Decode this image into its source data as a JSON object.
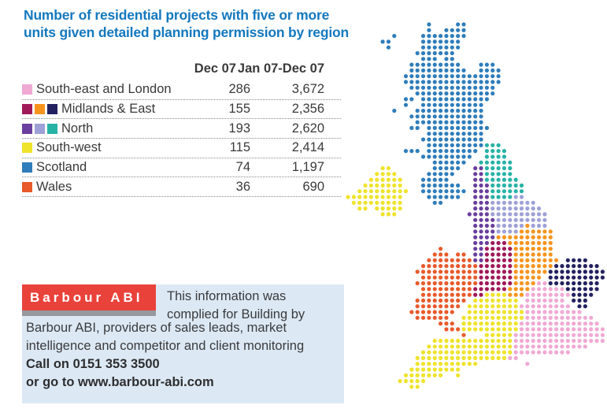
{
  "title": {
    "line1": "Number of residential projects with five or more",
    "line2": "units given detailed planning permission by region",
    "color": "#1478BE"
  },
  "table": {
    "headers": [
      "Dec 07",
      "Jan 07-Dec 07"
    ],
    "rows": [
      {
        "label": "South-east and London",
        "swatches": [
          "#F0A9D3"
        ],
        "dec07": "286",
        "jan_dec07": "3,672"
      },
      {
        "label": "Midlands & East",
        "swatches": [
          "#A01A59",
          "#F7941E",
          "#232160"
        ],
        "dec07": "155",
        "jan_dec07": "2,356"
      },
      {
        "label": "North",
        "swatches": [
          "#6A3F9D",
          "#9EA0D7",
          "#27B2A6"
        ],
        "dec07": "193",
        "jan_dec07": "2,620"
      },
      {
        "label": "South-west",
        "swatches": [
          "#EFE32B"
        ],
        "dec07": "115",
        "jan_dec07": "2,414"
      },
      {
        "label": "Scotland",
        "swatches": [
          "#2F7DBB"
        ],
        "dec07": "74",
        "jan_dec07": "1,197"
      },
      {
        "label": "Wales",
        "swatches": [
          "#E85A2B"
        ],
        "dec07": "36",
        "jan_dec07": "690"
      }
    ]
  },
  "infobox": {
    "logo_text": "Barbour ABI",
    "logo_bg": "#E9423B",
    "bar_color": "#97999E",
    "box_bg": "#DCE9F4",
    "intro_line1": "This information was",
    "intro_line2": "complied for Building by",
    "body_line1": "Barbour ABI, providers of sales leads, market",
    "body_line2": "intelligence and competitor and client monitoring",
    "phone_line": "Call on 0151 353 3500",
    "web_line": "or go to www.barbour-abi.com"
  },
  "chart_data": {
    "type": "table",
    "title": "Number of residential projects with five or more units given detailed planning permission by region",
    "categories": [
      "South-east and London",
      "Midlands & East",
      "North",
      "South-west",
      "Scotland",
      "Wales"
    ],
    "series": [
      {
        "name": "Dec 07",
        "values": [
          286,
          155,
          193,
          115,
          74,
          36
        ]
      },
      {
        "name": "Jan 07-Dec 07",
        "values": [
          3672,
          2356,
          2620,
          2414,
          1197,
          690
        ]
      }
    ],
    "legend_position": "left-table",
    "map_note": "Dot map of UK coloured by region; colour codes match table swatches"
  },
  "map": {
    "colors": {
      "B": "#2F7DBB",
      "T": "#27B2A6",
      "P": "#6A3F9D",
      "L": "#9EA0D7",
      "O": "#F7941E",
      "M": "#A01A59",
      "N": "#232160",
      "W": "#E85A2B",
      "Y": "#EFE32B",
      "K": "#F0A9D3"
    },
    "color_meaning": {
      "B": "Scotland",
      "T": "North (teal)",
      "P": "North (purple)",
      "L": "North (lavender)",
      "O": "Midlands & East (orange)",
      "M": "Midlands & East (maroon)",
      "N": "Midlands & East (navy)",
      "W": "Wales",
      "Y": "South-west / N.Ireland",
      "K": "South-east and London"
    },
    "rows": [
      "..............B....BB........................",
      "..............B..BBBB........................",
      "........B....BBBBBBBB........................",
      "......BB.....BBBBBBB.........................",
      ".......B.....BBBBBBB.........................",
      "............BBBBBBB..........................",
      ".............BBB.BB..........................",
      "...........BBBBBBBBB...BBB...................",
      "...........BBBBBBBBBB..BBBB..................",
      "..........BBBBBBBBBBBBBBBBB..................",
      "..........BBBBBBBBBBBBBBBBB..................",
      "...........BBBBBBBBBBBBBBB...................",
      "............BBBBBBBBBBBBBB...................",
      "..........BB.BBBBBBBBBBBB....................",
      "..........B..BBBBBBBBBBB.....................",
      "........B...BBBBBBBBBBBB.....................",
      "...........BBBBBBBBBBBBB.....................",
      "............BBBBBBBBBBBB.....................",
      "...........BB.BBBBBBBBBBB....................",
      "..............BBBBBBBBBB.....................",
      ".............BBBBBBBBBBB.....................",
      "..............BBBBBBBBBBTTT..................",
      "..........BBB.BBBBBBBBB.TTTT.................",
      ".............BBBBBBBBB..TTTT.................",
      "...............BBBBBB..TTTTTT................",
      "......YY.......BBBBB..PPTTTTT................",
      ".....YYYY.....BBBBB...PPTTTTT................",
      "....YYYYYY...BBBBB....PPTTTTTT...............",
      "...YYYYYYY...BBBBBBB..PPPTTTTTT..............",
      "..YYYYYYYYY..BBBBBBBB.PPPTTTTTT..............",
      "YYYYYYYYYY....BBBBBB..PPPTTTTLL..............",
      ".YYYYYYYYY.....BB.....PPPLLLLLLLL............",
      "..YY.YYYYY............PPPLLLLLLLLL...........",
      "......YYY............PPPPLLLLLLLLLL..........",
      "......................PPPPLLLLLLLLL..........",
      "......................PPPPLLLLLOLLL..........",
      "......................PPPPLLLLOOOOOO.........",
      "......................PPPPOOOOOOOOOO.........",
      "......................PPPMMMOOOOOOOO.........",
      "................W.....PPMMMMMOOOOOOO.........",
      "...............WWW.WW.PPMMMMMOOOOOOO.........",
      "..............WWWWWWWWPPMMMMMOOOOOOOO.NNNN...",
      ".............WWWWWWWWWWMMMMMMOOOOOOONNNNNNNN.",
      "............WWWWWWWWWWWMMMMMMOOOOOONNNNNNNNNN",
      ".............WWWWWWWWWWMMMMMMOOOOO.NNNNNNNNNN",
      "............WWWWWWWWWWWMMMMMMOOOOKKNNNNNNNNN.",
      ".............WWWWWWWWWMMMMMMOOOOKKKKKKNNNNNN.",
      ".............WWWWWWWWWMMYYYYOOOKKKKKKKKNNNN..",
      "............WWWWWWWWW.YYYYYYYY.KKKKKKK.NNN...",
      "............WWWWWWWW.YYYYYYYYYKKKKKKKKK.NN...",
      "...........WWWWWWWW..YYYYYYYYYYKKKKKKKKKK....",
      "............WWWWWW..YYYYYYYYYYYKKKKKKKKKKKK..",
      "................WWW.YYYYYYYYYYKKKKKKKKKKKKKK.",
      ".................WWWYYYYYYYYYYKKKKKKKKKKKKKKK",
      "....................W...YYYYYKKKKKKKKKKKKKKKK",
      "...............YYYYYYYYYYYYYYKKKKKKKKKKKKKKKK",
      "..............YYYYYYYYYYYYYYYKKKKKKKKKKKKK...",
      ".............YYYYYYYYYYYYYYYYKKKKKKKKKK......",
      "............YYYYYYYYYYYYYYYYKK...............",
      "............YYYYYYYYYYY........K.............",
      "...........YYYYYYYYY.........................",
      "..........YYYYYYY..Y.........................",
      ".........YYYYY...............................",
      "...........YY................................"
    ]
  }
}
